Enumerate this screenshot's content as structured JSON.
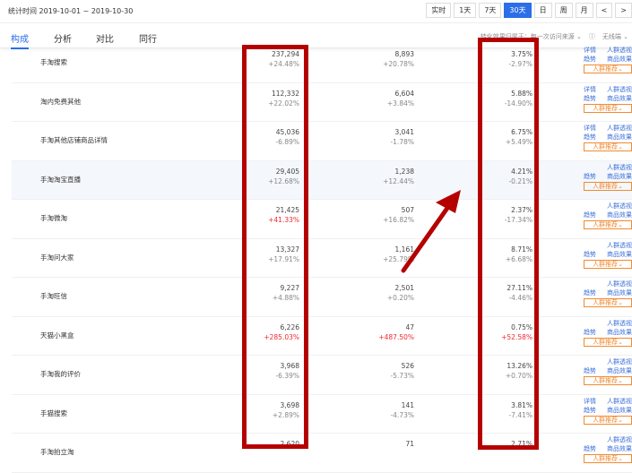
{
  "header": {
    "date_range": "统计时间 2019-10-01 ~ 2019-10-30",
    "buttons": [
      "实时",
      "1天",
      "7天",
      "30天",
      "日",
      "周",
      "月",
      "<",
      ">"
    ],
    "active": "30天"
  },
  "tabs": [
    {
      "label": "构成",
      "active": true
    },
    {
      "label": "分析"
    },
    {
      "label": "对比"
    },
    {
      "label": "同行"
    }
  ],
  "options": {
    "attribution": "转化效果归属于：每一次访问来源",
    "device": "无线端"
  },
  "actions": {
    "detail": "详情",
    "crowd": "人群透视",
    "trend": "趋势",
    "goods": "商品效果",
    "recommend": "人群推荐"
  },
  "rows": [
    {
      "name": "手淘搜索",
      "v1": "237,294",
      "c1": "+24.48%",
      "v2": "8,893",
      "c2": "+20.78%",
      "v3": "3.75%",
      "c3": "-2.97%",
      "detail": true
    },
    {
      "name": "淘内免费其他",
      "v1": "112,332",
      "c1": "+22.02%",
      "v2": "6,604",
      "c2": "+3.84%",
      "v3": "5.88%",
      "c3": "-14.90%",
      "detail": true
    },
    {
      "name": "手淘其他店铺商品详情",
      "v1": "45,036",
      "c1": "-6.89%",
      "v2": "3,041",
      "c2": "-1.78%",
      "v3": "6.75%",
      "c3": "+5.49%",
      "detail": true
    },
    {
      "name": "手淘淘宝直播",
      "v1": "29,405",
      "c1": "+12.68%",
      "v2": "1,238",
      "c2": "+12.44%",
      "v3": "4.21%",
      "c3": "-0.21%",
      "highlight": true
    },
    {
      "name": "手淘微淘",
      "v1": "21,425",
      "c1": "+41.33%",
      "c1_up": true,
      "v2": "507",
      "c2": "+16.82%",
      "v3": "2.37%",
      "c3": "-17.34%"
    },
    {
      "name": "手淘问大家",
      "v1": "13,327",
      "c1": "+17.91%",
      "v2": "1,161",
      "c2": "+25.79%",
      "v3": "8.71%",
      "c3": "+6.68%"
    },
    {
      "name": "手淘旺信",
      "v1": "9,227",
      "c1": "+4.88%",
      "v2": "2,501",
      "c2": "+0.20%",
      "v3": "27.11%",
      "c3": "-4.46%"
    },
    {
      "name": "天猫小黑盒",
      "v1": "6,226",
      "c1": "+285.03%",
      "c1_up": true,
      "v2": "47",
      "c2": "+487.50%",
      "c2_up": true,
      "v3": "0.75%",
      "c3": "+52.58%",
      "c3_up": true
    },
    {
      "name": "手淘我的评价",
      "v1": "3,968",
      "c1": "-6.39%",
      "v2": "526",
      "c2": "-5.73%",
      "v3": "13.26%",
      "c3": "+0.70%"
    },
    {
      "name": "手猫搜索",
      "v1": "3,698",
      "c1": "+2.89%",
      "v2": "141",
      "c2": "-4.73%",
      "v3": "3.81%",
      "c3": "-7.41%",
      "detail": true
    },
    {
      "name": "手淘拍立淘",
      "v1": "2,620",
      "c1": "",
      "v2": "71",
      "c2": "",
      "v3": "2.71%",
      "c3": ""
    }
  ],
  "colors": {
    "accent": "#2b6ee8",
    "up": "#f0292e",
    "annotation": "#b50000",
    "recommend": "#f08a32"
  }
}
